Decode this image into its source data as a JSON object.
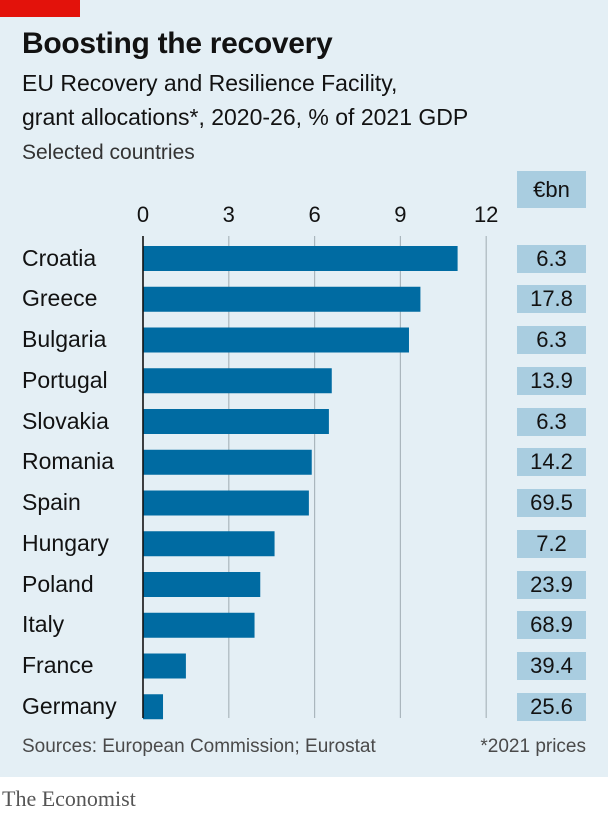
{
  "header": {
    "title": "Boosting the recovery",
    "subtitle_line1": "EU Recovery and Resilience Facility,",
    "subtitle_line2": "grant allocations*, 2020-26, % of 2021 GDP",
    "selection": "Selected countries"
  },
  "column": {
    "heading": "€bn"
  },
  "footer": {
    "sources": "Sources: European Commission; Eurostat",
    "note": "*2021 prices",
    "brand": "The Economist"
  },
  "colors": {
    "background": "#e4eff5",
    "bar": "#006ba2",
    "value_box": "#a9cde0",
    "accent": "#e3120b",
    "gridline": "#aab6bd"
  },
  "chart_data": {
    "type": "bar",
    "orientation": "horizontal",
    "title": "Boosting the recovery",
    "xlabel": "% of 2021 GDP",
    "ylabel": "",
    "xlim": [
      0,
      12
    ],
    "ticks": [
      0,
      3,
      6,
      9,
      12
    ],
    "grid": true,
    "categories": [
      "Croatia",
      "Greece",
      "Bulgaria",
      "Portugal",
      "Slovakia",
      "Romania",
      "Spain",
      "Hungary",
      "Poland",
      "Italy",
      "France",
      "Germany"
    ],
    "values": [
      11.0,
      9.7,
      9.3,
      6.6,
      6.5,
      5.9,
      5.8,
      4.6,
      4.1,
      3.9,
      1.5,
      0.7
    ],
    "secondary_label": "€bn",
    "secondary_values": [
      "6.3",
      "17.8",
      "6.3",
      "13.9",
      "6.3",
      "14.2",
      "69.5",
      "7.2",
      "23.9",
      "68.9",
      "39.4",
      "25.6"
    ]
  }
}
